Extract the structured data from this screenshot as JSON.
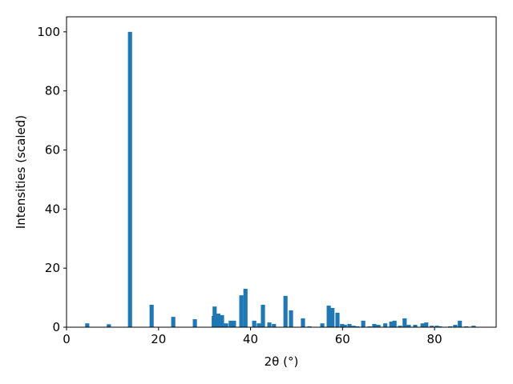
{
  "chart_data": {
    "type": "bar",
    "x_label": "2θ (°)",
    "y_label": "Intensities (scaled)",
    "x": [
      4.5,
      9.2,
      13.8,
      18.5,
      23.2,
      27.9,
      32.0,
      32.2,
      33.0,
      33.8,
      34.7,
      35.7,
      36.4,
      38.0,
      38.9,
      40.8,
      41.8,
      42.7,
      44.1,
      45.1,
      47.6,
      48.8,
      51.4,
      52.8,
      55.6,
      57.0,
      57.8,
      58.9,
      59.9,
      60.5,
      61.5,
      62.4,
      63.2,
      64.5,
      65.9,
      66.9,
      67.8,
      69.3,
      70.6,
      71.3,
      72.5,
      73.5,
      74.4,
      75.8,
      77.4,
      78.2,
      79.4,
      80.5,
      81.2,
      83.4,
      84.5,
      85.5,
      86.9,
      88.5
    ],
    "values": [
      1.3,
      1.0,
      100,
      7.6,
      3.5,
      2.7,
      3.8,
      7.0,
      4.6,
      4.1,
      1.3,
      2.2,
      2.2,
      10.8,
      13.0,
      2.2,
      1.3,
      7.6,
      1.6,
      1.1,
      10.6,
      5.7,
      3.0,
      0.3,
      1.3,
      7.3,
      6.5,
      4.9,
      1.1,
      0.8,
      1.1,
      0.5,
      0.3,
      2.2,
      0.3,
      1.1,
      0.8,
      1.3,
      1.9,
      2.2,
      0.5,
      3.0,
      0.8,
      0.8,
      1.3,
      1.6,
      0.5,
      0.5,
      0.3,
      0.3,
      0.8,
      2.2,
      0.3,
      0.5
    ],
    "color": "#1f77b4",
    "xlim": [
      0,
      93.4
    ],
    "ylim": [
      0,
      105.1
    ],
    "xticks": [
      0,
      20,
      40,
      60,
      80
    ],
    "yticks": [
      0,
      20,
      40,
      60,
      80,
      100
    ],
    "grid": false
  }
}
